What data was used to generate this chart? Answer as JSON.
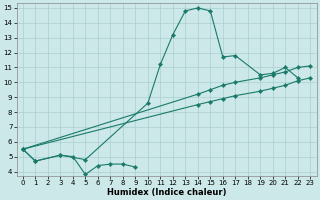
{
  "xlabel": "Humidex (Indice chaleur)",
  "bg_color": "#cce8e8",
  "grid_color": "#aacfcf",
  "line_color": "#1a7a6a",
  "xlim": [
    -0.5,
    23.5
  ],
  "ylim": [
    3.7,
    15.3
  ],
  "xticks": [
    0,
    1,
    2,
    3,
    4,
    5,
    6,
    7,
    8,
    9,
    10,
    11,
    12,
    13,
    14,
    15,
    16,
    17,
    18,
    19,
    20,
    21,
    22,
    23
  ],
  "yticks": [
    4,
    5,
    6,
    7,
    8,
    9,
    10,
    11,
    12,
    13,
    14,
    15
  ],
  "line1_x": [
    0,
    1,
    3,
    5,
    10,
    11,
    12,
    13,
    14,
    15,
    16,
    17,
    19,
    20,
    21,
    22
  ],
  "line1_y": [
    5.5,
    4.7,
    5.1,
    4.8,
    8.6,
    11.2,
    13.2,
    14.8,
    15.0,
    14.8,
    11.7,
    11.8,
    10.5,
    10.6,
    11.0,
    10.3
  ],
  "line2_x": [
    0,
    1,
    3,
    4,
    5,
    6,
    7,
    8,
    9
  ],
  "line2_y": [
    5.5,
    4.7,
    5.1,
    5.0,
    3.8,
    4.4,
    4.5,
    4.5,
    4.3
  ],
  "line3_x": [
    0,
    14,
    15,
    16,
    17,
    19,
    20,
    21,
    22,
    23
  ],
  "line3_y": [
    5.5,
    9.2,
    9.5,
    9.8,
    10.0,
    10.3,
    10.5,
    10.7,
    11.0,
    11.1
  ],
  "line4_x": [
    0,
    14,
    15,
    16,
    17,
    19,
    20,
    21,
    22,
    23
  ],
  "line4_y": [
    5.5,
    8.5,
    8.7,
    8.9,
    9.1,
    9.4,
    9.6,
    9.8,
    10.1,
    10.3
  ]
}
